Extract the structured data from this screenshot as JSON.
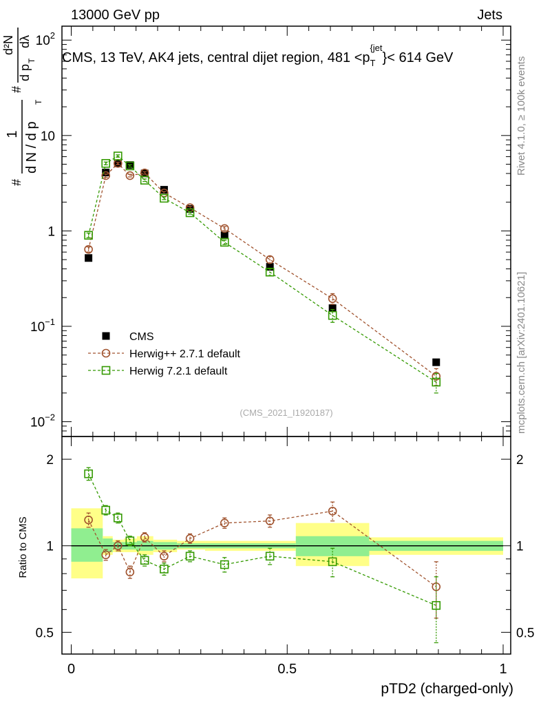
{
  "header": {
    "left": "13000 GeV pp",
    "right": "Jets"
  },
  "chart_data": [
    {
      "type": "scatter",
      "panel": "main",
      "title": "CMS, 13 TeV, AK4 jets, central dijet region, 481 <p",
      "title_sub": "T",
      "title_sup": "{jet",
      "title_end": "}< 614 GeV",
      "ylabel_num": "1",
      "ylabel_den": "d N / d p",
      "ylabel_right_num": "d²N",
      "ylabel_right_den": "d p",
      "ylabel_lambda": "dλ",
      "ylabel_sub": "T",
      "ylabel_hash": "#",
      "yscale": "log",
      "ylim": [
        0.007,
        140
      ],
      "xlim": [
        -0.02,
        1.0
      ],
      "y_ticks": [
        {
          "value": 0.01,
          "base": "10",
          "exp": "−2"
        },
        {
          "value": 0.1,
          "base": "10",
          "exp": "−1"
        },
        {
          "value": 1,
          "base": "1",
          "exp": ""
        },
        {
          "value": 10,
          "base": "10",
          "exp": ""
        },
        {
          "value": 100,
          "base": "10",
          "exp": "2"
        }
      ],
      "watermark": "(CMS_2021_I1920187)",
      "legend": [
        {
          "label": "CMS",
          "marker": "filled-square",
          "color": "#000000"
        },
        {
          "label": "Herwig++ 2.7.1 default",
          "marker": "open-circle",
          "color": "#a0522d"
        },
        {
          "label": "Herwig 7.2.1 default",
          "marker": "open-square",
          "color": "#339900"
        }
      ],
      "series": [
        {
          "name": "CMS",
          "x": [
            0.04,
            0.08,
            0.108,
            0.136,
            0.17,
            0.215,
            0.275,
            0.355,
            0.46,
            0.605,
            0.845
          ],
          "y": [
            0.52,
            4.1,
            5.1,
            4.9,
            4.0,
            2.7,
            1.7,
            0.9,
            0.42,
            0.155,
            0.042
          ]
        },
        {
          "name": "Herwig++ 2.7.1 default",
          "x": [
            0.04,
            0.08,
            0.108,
            0.136,
            0.17,
            0.215,
            0.275,
            0.355,
            0.46,
            0.605,
            0.845
          ],
          "y": [
            0.64,
            3.8,
            5.1,
            3.8,
            4.05,
            2.5,
            1.75,
            1.06,
            0.5,
            0.195,
            0.03
          ],
          "yerr": [
            0.04,
            0.15,
            0.15,
            0.12,
            0.12,
            0.08,
            0.06,
            0.05,
            0.04,
            0.025,
            0.006
          ]
        },
        {
          "name": "Herwig 7.2.1 default",
          "x": [
            0.04,
            0.08,
            0.108,
            0.136,
            0.17,
            0.215,
            0.275,
            0.355,
            0.46,
            0.605,
            0.845
          ],
          "y": [
            0.9,
            5.1,
            6.1,
            4.8,
            3.4,
            2.2,
            1.55,
            0.76,
            0.37,
            0.13,
            0.026
          ],
          "yerr": [
            0.05,
            0.17,
            0.17,
            0.14,
            0.1,
            0.07,
            0.05,
            0.04,
            0.03,
            0.02,
            0.006
          ]
        }
      ]
    },
    {
      "type": "scatter",
      "panel": "ratio",
      "ylabel": "Ratio to CMS",
      "xlabel": "pTD2 (charged-only)",
      "yscale": "log",
      "ylim": [
        0.42,
        2.4
      ],
      "xlim": [
        -0.02,
        1.0
      ],
      "y_ticks": [
        {
          "value": 0.5,
          "label": "0.5"
        },
        {
          "value": 1,
          "label": "1"
        },
        {
          "value": 2,
          "label": "2"
        }
      ],
      "x_ticks": [
        {
          "value": 0,
          "label": "0"
        },
        {
          "value": 0.5,
          "label": "0.5"
        },
        {
          "value": 1,
          "label": "1"
        }
      ],
      "bands": [
        {
          "x0": 0.0,
          "x1": 0.073,
          "stat": [
            0.88,
            1.15
          ],
          "total": [
            0.77,
            1.35
          ]
        },
        {
          "x0": 0.073,
          "x1": 0.096,
          "stat": [
            0.95,
            1.06
          ],
          "total": [
            0.93,
            1.08
          ]
        },
        {
          "x0": 0.096,
          "x1": 0.122,
          "stat": [
            0.97,
            1.03
          ],
          "total": [
            0.95,
            1.05
          ]
        },
        {
          "x0": 0.122,
          "x1": 0.152,
          "stat": [
            0.97,
            1.03
          ],
          "total": [
            0.95,
            1.06
          ]
        },
        {
          "x0": 0.152,
          "x1": 0.19,
          "stat": [
            0.96,
            1.04
          ],
          "total": [
            0.93,
            1.08
          ]
        },
        {
          "x0": 0.19,
          "x1": 0.245,
          "stat": [
            0.97,
            1.03
          ],
          "total": [
            0.95,
            1.05
          ]
        },
        {
          "x0": 0.245,
          "x1": 0.31,
          "stat": [
            0.98,
            1.02
          ],
          "total": [
            0.97,
            1.04
          ]
        },
        {
          "x0": 0.31,
          "x1": 0.4,
          "stat": [
            0.98,
            1.02
          ],
          "total": [
            0.96,
            1.04
          ]
        },
        {
          "x0": 0.4,
          "x1": 0.52,
          "stat": [
            0.98,
            1.02
          ],
          "total": [
            0.96,
            1.04
          ]
        },
        {
          "x0": 0.52,
          "x1": 0.69,
          "stat": [
            0.92,
            1.08
          ],
          "total": [
            0.85,
            1.2
          ]
        },
        {
          "x0": 0.69,
          "x1": 1.0,
          "stat": [
            0.96,
            1.04
          ],
          "total": [
            0.93,
            1.07
          ]
        }
      ],
      "series": [
        {
          "name": "Herwig++ 2.7.1 default",
          "x": [
            0.04,
            0.08,
            0.108,
            0.136,
            0.17,
            0.215,
            0.275,
            0.355,
            0.46,
            0.605,
            0.845
          ],
          "y": [
            1.23,
            0.93,
            1.0,
            0.81,
            1.07,
            0.92,
            1.06,
            1.2,
            1.22,
            1.32,
            0.72
          ],
          "yerr": [
            0.07,
            0.04,
            0.04,
            0.04,
            0.04,
            0.04,
            0.04,
            0.05,
            0.06,
            0.1,
            0.16
          ]
        },
        {
          "name": "Herwig 7.2.1 default",
          "x": [
            0.04,
            0.08,
            0.108,
            0.136,
            0.17,
            0.215,
            0.275,
            0.355,
            0.46,
            0.605,
            0.845
          ],
          "y": [
            1.78,
            1.33,
            1.25,
            1.04,
            0.89,
            0.83,
            0.92,
            0.86,
            0.92,
            0.88,
            0.62
          ],
          "yerr": [
            0.09,
            0.05,
            0.05,
            0.04,
            0.04,
            0.04,
            0.04,
            0.05,
            0.06,
            0.1,
            0.16
          ]
        }
      ]
    }
  ],
  "side_labels": {
    "top": "Rivet 4.1.0, ≥ 100k events",
    "bottom": "mcplots.cern.ch [arXiv:2401.10621]"
  },
  "colors": {
    "herwigpp": "#a0522d",
    "herwig7": "#339900",
    "stat_band": "#90ee90",
    "total_band": "#ffff88"
  }
}
